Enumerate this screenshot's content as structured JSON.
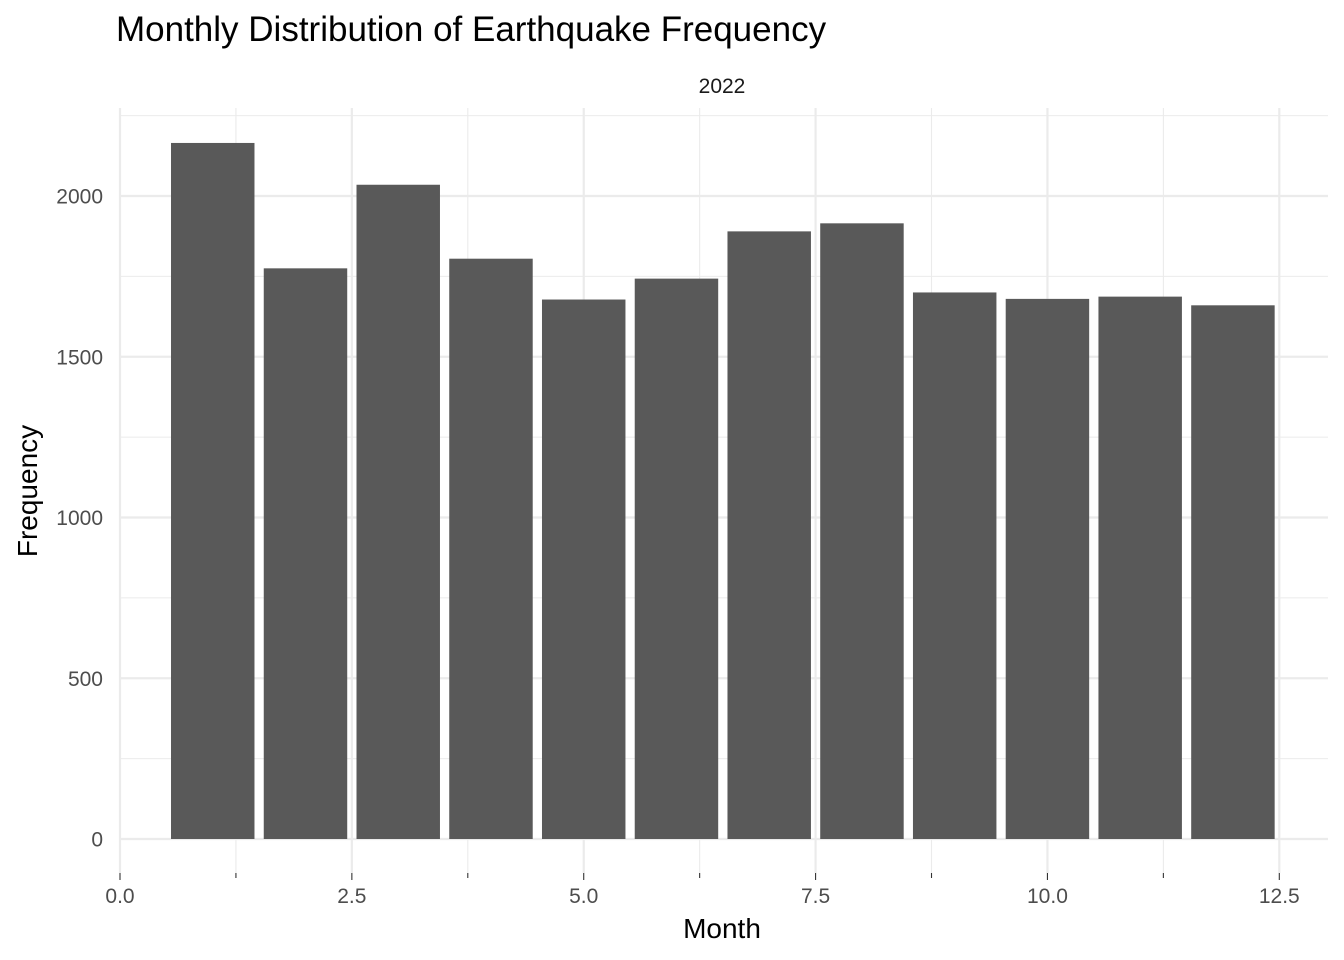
{
  "chart_data": {
    "type": "bar",
    "title": "Monthly Distribution of Earthquake Frequency",
    "facet_label": "2022",
    "xlabel": "Month",
    "ylabel": "Frequency",
    "x": [
      1,
      2,
      3,
      4,
      5,
      6,
      7,
      8,
      9,
      10,
      11,
      12
    ],
    "values": [
      2165,
      1775,
      2035,
      1805,
      1678,
      1743,
      1890,
      1915,
      1700,
      1680,
      1687,
      1660
    ],
    "bar_width": 0.9,
    "xlim": [
      0,
      12.5
    ],
    "ylim": [
      0,
      2165
    ],
    "x_ticks": [
      0,
      2.5,
      5,
      7.5,
      10,
      12.5
    ],
    "x_tick_labels": [
      "0.0",
      "2.5",
      "5.0",
      "7.5",
      "10.0",
      "12.5"
    ],
    "y_ticks": [
      0,
      500,
      1000,
      1500,
      2000
    ],
    "y_tick_labels": [
      "0",
      "500",
      "1000",
      "1500",
      "2000"
    ],
    "bar_color": "#595959",
    "grid": true,
    "legend": "none"
  }
}
